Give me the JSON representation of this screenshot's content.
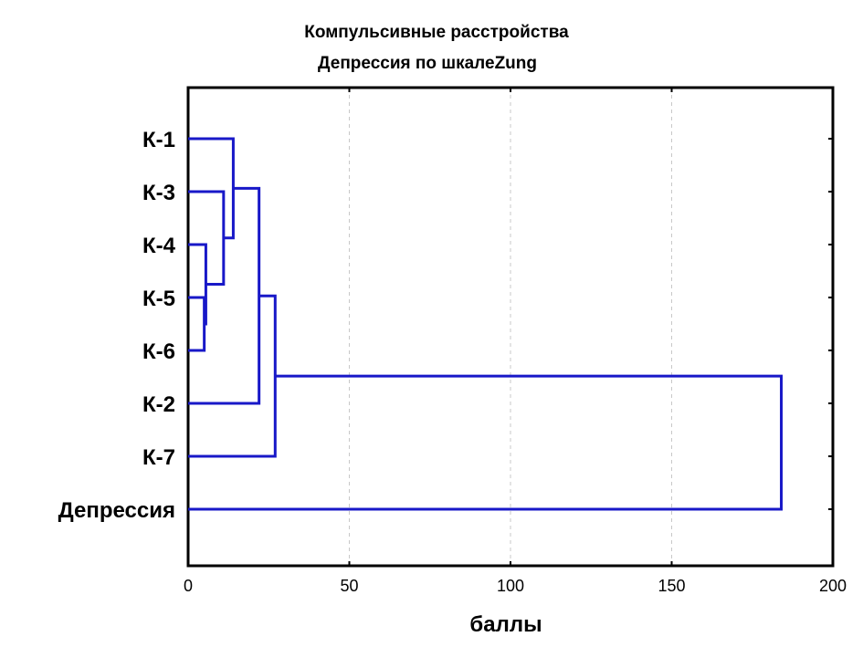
{
  "chart_data": {
    "type": "dendrogram",
    "orientation": "horizontal",
    "title": "Компульсивные расстройства",
    "subtitle": "Депрессия по шкалеZung",
    "xlabel": "баллы",
    "xlim": [
      0,
      200
    ],
    "xticks": [
      "0",
      "50",
      "100",
      "150",
      "200"
    ],
    "grid": "vertical-dashed",
    "line_color": "#1818c8",
    "leaves": [
      "К-1",
      "К-3",
      "К-4",
      "К-5",
      "К-6",
      "К-2",
      "К-7",
      "Депрессия"
    ],
    "merges": [
      {
        "clusters": [
          "К-5",
          "К-6"
        ],
        "distance": 5
      },
      {
        "clusters": [
          "К-4",
          "К-5+К-6"
        ],
        "distance": 5.5
      },
      {
        "clusters": [
          "К-3",
          "К-4+К-5+К-6"
        ],
        "distance": 11
      },
      {
        "clusters": [
          "К-1",
          "К-3+К-4+К-5+К-6"
        ],
        "distance": 14
      },
      {
        "clusters": [
          "К-1…К-6",
          "К-2"
        ],
        "distance": 22
      },
      {
        "clusters": [
          "К-1…К-2",
          "К-7"
        ],
        "distance": 27
      },
      {
        "clusters": [
          "К-1…К-7",
          "Депрессия"
        ],
        "distance": 184
      }
    ]
  }
}
